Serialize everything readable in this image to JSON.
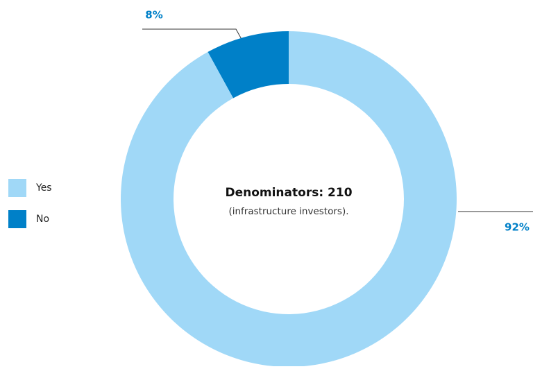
{
  "chart_data": {
    "type": "donut",
    "categories": [
      "Yes",
      "No"
    ],
    "values": [
      92,
      8
    ],
    "value_labels": [
      "92%",
      "8%"
    ],
    "colors": [
      "#a0d8f7",
      "#0080c8"
    ],
    "annotation": [
      "Denominators: 210",
      "(infrastructure investors)."
    ]
  }
}
